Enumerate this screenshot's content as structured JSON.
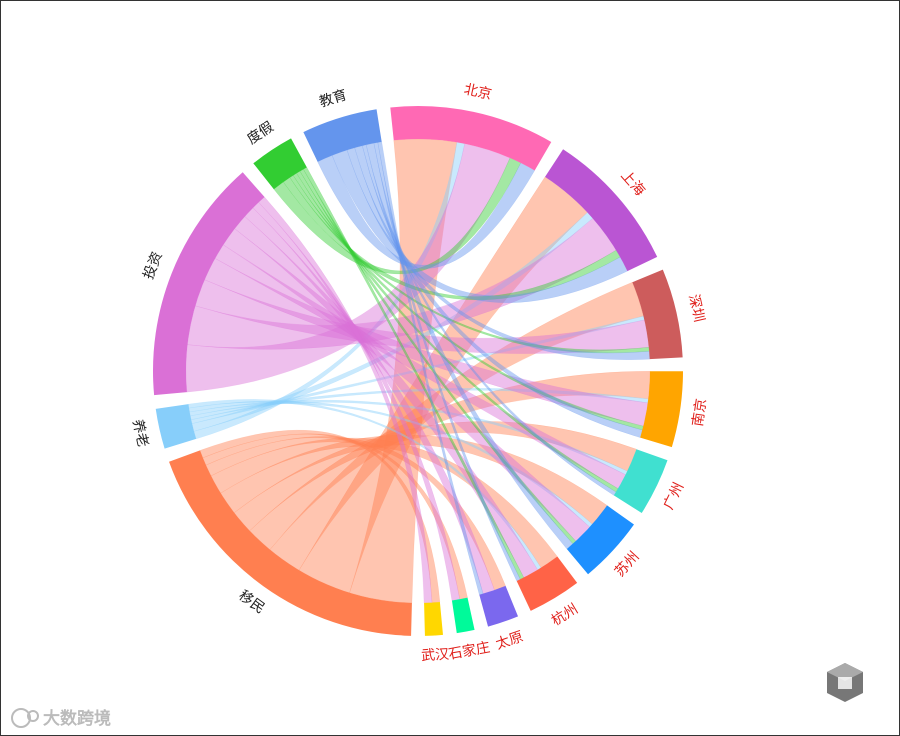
{
  "chart_data": {
    "type": "chord",
    "categories": [
      "北京",
      "上海",
      "深圳",
      "南京",
      "广州",
      "苏州",
      "杭州",
      "太原",
      "石家庄",
      "武汉"
    ],
    "category_colors": [
      "#ff69b4",
      "#ba55d3",
      "#cd5c5c",
      "#ffa500",
      "#40e0d0",
      "#1e90ff",
      "#ff6347",
      "#7b68ee",
      "#00fa9a",
      "#ffd700"
    ],
    "category_label_color": "#e0201b",
    "series_label_color": "#222222",
    "series": [
      {
        "name": "移民",
        "color": "#ff7f50",
        "values": [
          16,
          14,
          9,
          7,
          6,
          6,
          5,
          3,
          2,
          2
        ]
      },
      {
        "name": "养老",
        "color": "#87cefa",
        "values": [
          2,
          2,
          1,
          1,
          1,
          1,
          1,
          0,
          0,
          0
        ]
      },
      {
        "name": "投资",
        "color": "#da70d6",
        "values": [
          12,
          10,
          7,
          6,
          4,
          5,
          4,
          3,
          2,
          2
        ]
      },
      {
        "name": "度假",
        "color": "#32cd32",
        "values": [
          3,
          2,
          1,
          1,
          1,
          1,
          1,
          0,
          0,
          0
        ]
      },
      {
        "name": "教育",
        "color": "#6495ed",
        "values": [
          4,
          4,
          2,
          2,
          1,
          2,
          1,
          1,
          0,
          0
        ]
      }
    ],
    "watermark": "大数跨境"
  }
}
